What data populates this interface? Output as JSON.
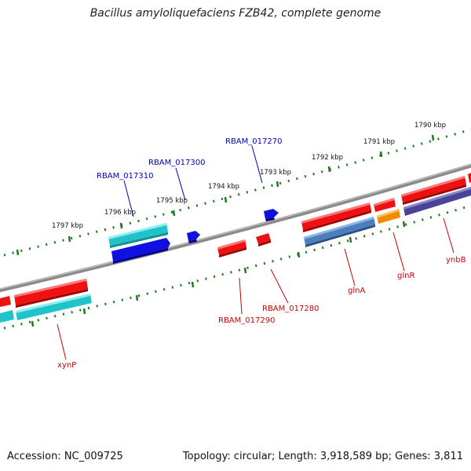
{
  "title": "Bacillus amyloliquefaciens FZB42, complete genome",
  "footer": {
    "accession": "Accession: NC_009725",
    "summary": "Topology: circular; Length: 3,918,589 bp; Genes: 3,811"
  },
  "colors": {
    "backbone": "#8a8a8a",
    "ticks": "#1e7a1e",
    "gene_red": "#ee1111",
    "gene_cyan": "#20c4c8",
    "gene_blue": "#1010e0",
    "gene_steelblue": "#4a7fbf",
    "gene_orange": "#f08a00",
    "gene_slate": "#4a4498",
    "label_blue": "#0000c0",
    "label_red": "#cc0000"
  },
  "scale": {
    "labels": [
      "1797 kbp",
      "1796 kbp",
      "1795 kbp",
      "1794 kbp",
      "1793 kbp",
      "1792 kbp",
      "1791 kbp",
      "1790 kbp"
    ]
  },
  "genes": [
    {
      "label": "RBAM_017310",
      "label_color": "label_blue"
    },
    {
      "label": "RBAM_017300",
      "label_color": "label_blue"
    },
    {
      "label": "RBAM_017270",
      "label_color": "label_blue"
    },
    {
      "label": "RBAM_017290",
      "label_color": "label_red"
    },
    {
      "label": "RBAM_017280",
      "label_color": "label_red"
    },
    {
      "label": "glnA",
      "label_color": "label_red"
    },
    {
      "label": "glnR",
      "label_color": "label_red"
    },
    {
      "label": "ynbB",
      "label_color": "label_red"
    },
    {
      "label": "xynP",
      "label_color": "label_red"
    }
  ]
}
